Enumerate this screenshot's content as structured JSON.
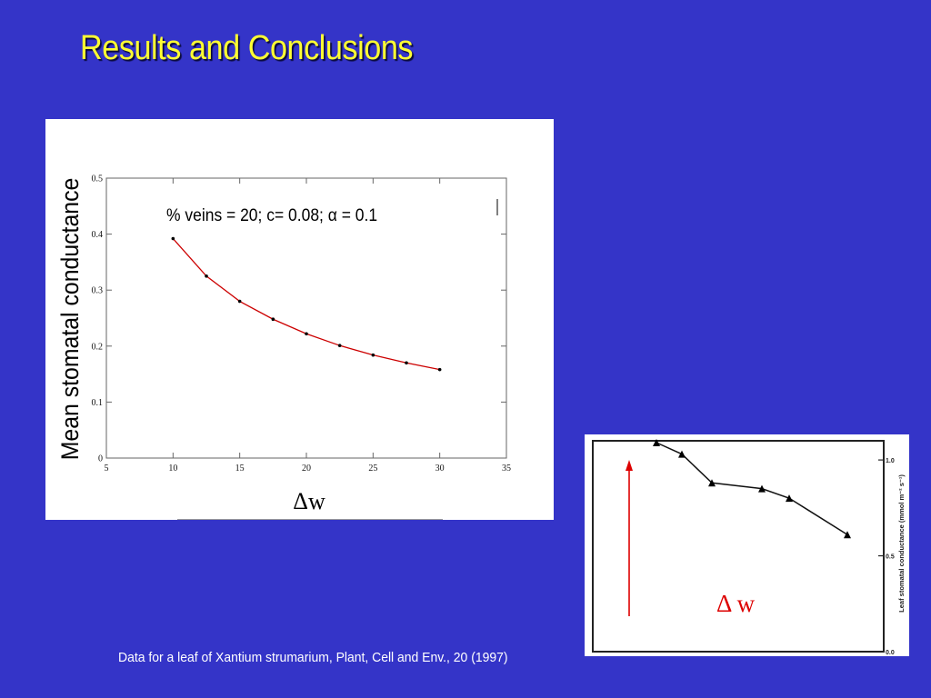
{
  "slide": {
    "title": "Results and Conclusions",
    "caption": "Data for a leaf of Xantium strumarium, Plant, Cell and Env., 20 (1997)"
  },
  "colors": {
    "background": "#3434c8",
    "title": "#ffff33",
    "series_line": "#cc0000",
    "arrow": "#dd0000"
  },
  "chart_data": [
    {
      "type": "line",
      "annotation": "% veins = 20;  c= 0.08;  α = 0.1",
      "xlabel": "Δw",
      "ylabel": "Mean stomatal conductance",
      "xlim": [
        5,
        35
      ],
      "ylim": [
        0,
        0.5
      ],
      "xticks": [
        "5",
        "10",
        "15",
        "20",
        "25",
        "30",
        "35"
      ],
      "yticks": [
        "0",
        "0.1",
        "0.2",
        "0.3",
        "0.4",
        "0.5"
      ],
      "x": [
        10,
        12.5,
        15,
        17.5,
        20,
        22.5,
        25,
        27.5,
        30
      ],
      "y": [
        0.392,
        0.325,
        0.28,
        0.248,
        0.222,
        0.201,
        0.184,
        0.17,
        0.158
      ],
      "grid": false,
      "legend": "none"
    },
    {
      "type": "line",
      "ylabel": "Leaf stomatal conductance (mmol m⁻² s⁻¹)",
      "xlabel": "Δ w",
      "yticks": [
        "0.0",
        "0.5",
        "1.0"
      ],
      "ylim": [
        0,
        1.1
      ],
      "x": [
        1,
        2,
        3,
        4,
        5,
        6
      ],
      "y": [
        1.1,
        1.04,
        0.89,
        0.86,
        0.81,
        0.62
      ],
      "markers": "triangle",
      "legend": "none"
    }
  ]
}
